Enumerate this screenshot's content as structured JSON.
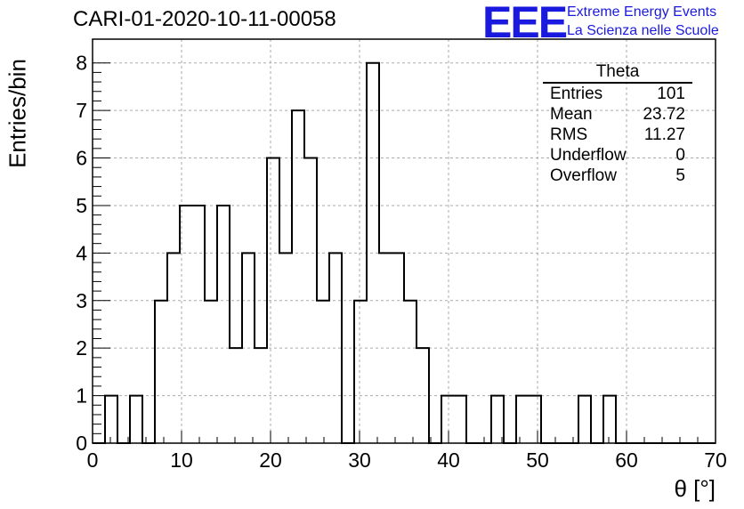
{
  "title": "CARI-01-2020-10-11-00058",
  "logo": {
    "mark": "EEE",
    "line1": "Extreme Energy Events",
    "line2": "La Scienza nelle Scuole",
    "color": "#1a1adf"
  },
  "stats": {
    "title": "Theta",
    "rows": [
      {
        "label": "Entries",
        "value": "101"
      },
      {
        "label": "Mean",
        "value": "23.72"
      },
      {
        "label": "RMS",
        "value": "11.27"
      },
      {
        "label": "Underflow",
        "value": "0"
      },
      {
        "label": "Overflow",
        "value": "5"
      }
    ]
  },
  "chart_data": {
    "type": "bar",
    "histogram": true,
    "title": "CARI-01-2020-10-11-00058",
    "xlabel": "θ [°]",
    "ylabel": "Entries/bin",
    "xlim": [
      0,
      70
    ],
    "ylim": [
      0,
      8.5
    ],
    "bin_width": 1.4,
    "bin_start": 0,
    "values": [
      0,
      1,
      0,
      1,
      0,
      3,
      4,
      5,
      5,
      3,
      5,
      2,
      4,
      2,
      6,
      4,
      7,
      6,
      3,
      4,
      0,
      3,
      8,
      4,
      4,
      3,
      2,
      0,
      1,
      1,
      0,
      0,
      1,
      0,
      1,
      1,
      0,
      0,
      0,
      1,
      0,
      1,
      0,
      0,
      0,
      0,
      0,
      0,
      0,
      0
    ],
    "xticks": [
      0,
      10,
      20,
      30,
      40,
      50,
      60,
      70
    ],
    "yticks": [
      0,
      1,
      2,
      3,
      4,
      5,
      6,
      7,
      8
    ],
    "grid": true,
    "line_color": "#000000"
  }
}
